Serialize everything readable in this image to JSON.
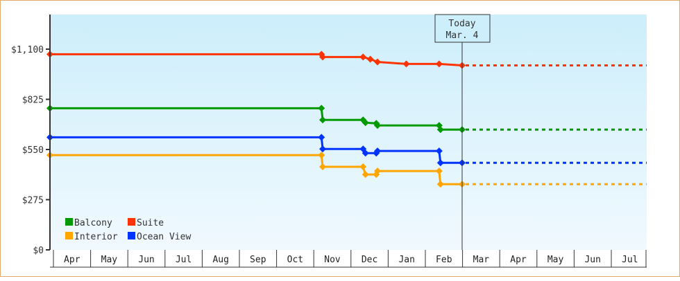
{
  "chart_data": {
    "type": "line",
    "title": "",
    "xlabel": "",
    "ylabel": "",
    "ylim": [
      0,
      1100
    ],
    "grid": false,
    "legend_position": "bottom-left inside plot",
    "y_ticks": [
      {
        "value": 0,
        "label": "$0"
      },
      {
        "value": 275,
        "label": "$275"
      },
      {
        "value": 550,
        "label": "$550"
      },
      {
        "value": 825,
        "label": "$825"
      },
      {
        "value": 1100,
        "label": "$1,100"
      }
    ],
    "x_tick_labels": [
      "Apr",
      "May",
      "Jun",
      "Jul",
      "Aug",
      "Sep",
      "Oct",
      "Nov",
      "Dec",
      "Jan",
      "Feb",
      "Mar",
      "Apr",
      "May",
      "Jun",
      "Jul"
    ],
    "annotation": {
      "line1": "Today",
      "line2": "Mar. 4"
    },
    "series": [
      {
        "name": "Suite",
        "color": "#ff3300",
        "points": [
          {
            "x": "Apr 1",
            "y": 1072
          },
          {
            "x": "Nov 10",
            "y": 1072
          },
          {
            "x": "Nov 11",
            "y": 1057
          },
          {
            "x": "Dec 14",
            "y": 1057
          },
          {
            "x": "Dec 20",
            "y": 1045
          },
          {
            "x": "Dec 26",
            "y": 1030
          },
          {
            "x": "Jan 19",
            "y": 1019
          },
          {
            "x": "Feb 14",
            "y": 1019
          },
          {
            "x": "Mar 4",
            "y": 1011
          }
        ],
        "projection": {
          "from": "Mar 4",
          "to": "Jul 31",
          "y": 1011,
          "style": "dashed"
        }
      },
      {
        "name": "Balcony",
        "color": "#009900",
        "points": [
          {
            "x": "Apr 1",
            "y": 776
          },
          {
            "x": "Nov 10",
            "y": 776
          },
          {
            "x": "Nov 11",
            "y": 712
          },
          {
            "x": "Dec 14",
            "y": 712
          },
          {
            "x": "Dec 16",
            "y": 697
          },
          {
            "x": "Dec 25",
            "y": 693
          },
          {
            "x": "Dec 26",
            "y": 682
          },
          {
            "x": "Feb 14",
            "y": 682
          },
          {
            "x": "Feb 15",
            "y": 659
          },
          {
            "x": "Mar 4",
            "y": 659
          }
        ],
        "projection": {
          "from": "Mar 4",
          "to": "Jul 31",
          "y": 659,
          "style": "dashed"
        }
      },
      {
        "name": "Ocean View",
        "color": "#0033ff",
        "points": [
          {
            "x": "Apr 1",
            "y": 617
          },
          {
            "x": "Nov 10",
            "y": 617
          },
          {
            "x": "Nov 11",
            "y": 553
          },
          {
            "x": "Dec 14",
            "y": 553
          },
          {
            "x": "Dec 16",
            "y": 530
          },
          {
            "x": "Dec 25",
            "y": 530
          },
          {
            "x": "Dec 26",
            "y": 542
          },
          {
            "x": "Feb 14",
            "y": 542
          },
          {
            "x": "Feb 15",
            "y": 477
          },
          {
            "x": "Mar 4",
            "y": 477
          }
        ],
        "projection": {
          "from": "Mar 4",
          "to": "Jul 31",
          "y": 477,
          "style": "dashed"
        }
      },
      {
        "name": "Interior",
        "color": "#ffa500",
        "points": [
          {
            "x": "Apr 1",
            "y": 519
          },
          {
            "x": "Nov 10",
            "y": 519
          },
          {
            "x": "Nov 11",
            "y": 455
          },
          {
            "x": "Dec 14",
            "y": 455
          },
          {
            "x": "Dec 16",
            "y": 413
          },
          {
            "x": "Dec 25",
            "y": 413
          },
          {
            "x": "Dec 26",
            "y": 432
          },
          {
            "x": "Feb 14",
            "y": 432
          },
          {
            "x": "Feb 15",
            "y": 360
          },
          {
            "x": "Mar 4",
            "y": 360
          }
        ],
        "projection": {
          "from": "Mar 4",
          "to": "Jul 31",
          "y": 360,
          "style": "dashed"
        }
      }
    ],
    "legend": [
      {
        "label": "Balcony",
        "color": "#009900"
      },
      {
        "label": "Suite",
        "color": "#ff3300"
      },
      {
        "label": "Interior",
        "color": "#ffa500"
      },
      {
        "label": "Ocean View",
        "color": "#0033ff"
      }
    ]
  },
  "colors": {
    "frame_border": "#e2a968",
    "plot_bg_top": "#cdeefb",
    "plot_bg_bottom": "#eef8fd",
    "axis": "#333333"
  }
}
